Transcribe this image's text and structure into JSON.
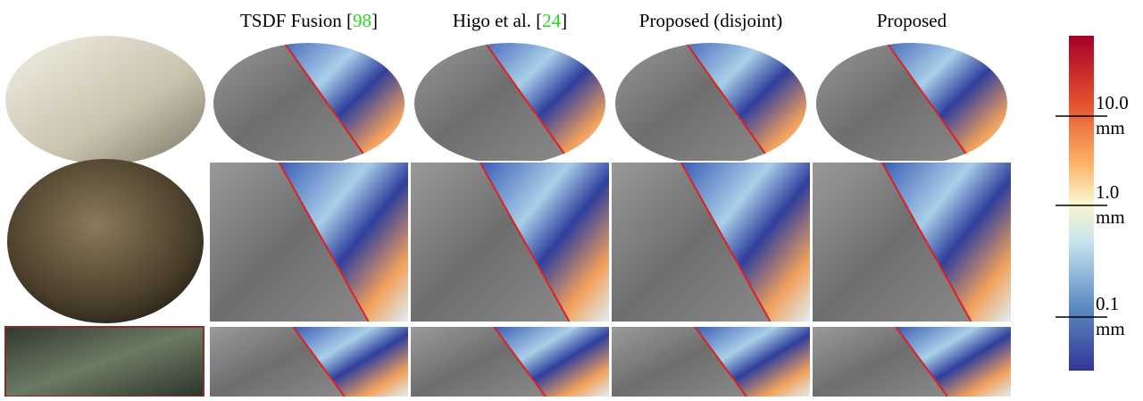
{
  "columns": [
    {
      "prefix": "TSDF Fusion [",
      "ref": "98",
      "suffix": "]"
    },
    {
      "prefix": "Higo et al. [",
      "ref": "24",
      "suffix": "]"
    },
    {
      "prefix": "Proposed (disjoint)"
    },
    {
      "prefix": "Proposed"
    }
  ],
  "colorbar": {
    "labels": [
      {
        "value": "10.0",
        "unit": "mm"
      },
      {
        "value": "1.0",
        "unit": "mm"
      },
      {
        "value": "0.1",
        "unit": "mm"
      }
    ]
  }
}
